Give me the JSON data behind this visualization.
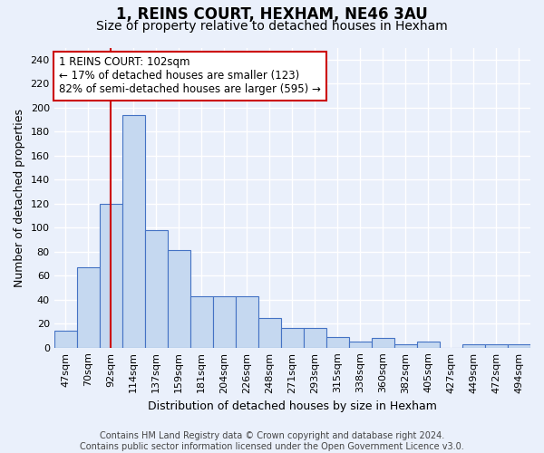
{
  "title": "1, REINS COURT, HEXHAM, NE46 3AU",
  "subtitle": "Size of property relative to detached houses in Hexham",
  "xlabel": "Distribution of detached houses by size in Hexham",
  "ylabel": "Number of detached properties",
  "categories": [
    "47sqm",
    "70sqm",
    "92sqm",
    "114sqm",
    "137sqm",
    "159sqm",
    "181sqm",
    "204sqm",
    "226sqm",
    "248sqm",
    "271sqm",
    "293sqm",
    "315sqm",
    "338sqm",
    "360sqm",
    "382sqm",
    "405sqm",
    "427sqm",
    "449sqm",
    "472sqm",
    "494sqm"
  ],
  "values": [
    14,
    67,
    120,
    194,
    98,
    81,
    43,
    43,
    43,
    25,
    16,
    16,
    9,
    5,
    8,
    3,
    5,
    0,
    3,
    3,
    3
  ],
  "bar_color": "#c5d8f0",
  "bar_edge_color": "#4472c4",
  "background_color": "#eaf0fb",
  "grid_color": "#ffffff",
  "vline_x_index": 2,
  "vline_color": "#cc0000",
  "annotation_line1": "1 REINS COURT: 102sqm",
  "annotation_line2": "← 17% of detached houses are smaller (123)",
  "annotation_line3": "82% of semi-detached houses are larger (595) →",
  "annotation_box_color": "white",
  "annotation_box_edge_color": "#cc0000",
  "ylim": [
    0,
    250
  ],
  "yticks": [
    0,
    20,
    40,
    60,
    80,
    100,
    120,
    140,
    160,
    180,
    200,
    220,
    240
  ],
  "footnote": "Contains HM Land Registry data © Crown copyright and database right 2024.\nContains public sector information licensed under the Open Government Licence v3.0.",
  "title_fontsize": 12,
  "subtitle_fontsize": 10,
  "xlabel_fontsize": 9,
  "ylabel_fontsize": 9,
  "tick_fontsize": 8,
  "annotation_fontsize": 8.5,
  "footnote_fontsize": 7
}
